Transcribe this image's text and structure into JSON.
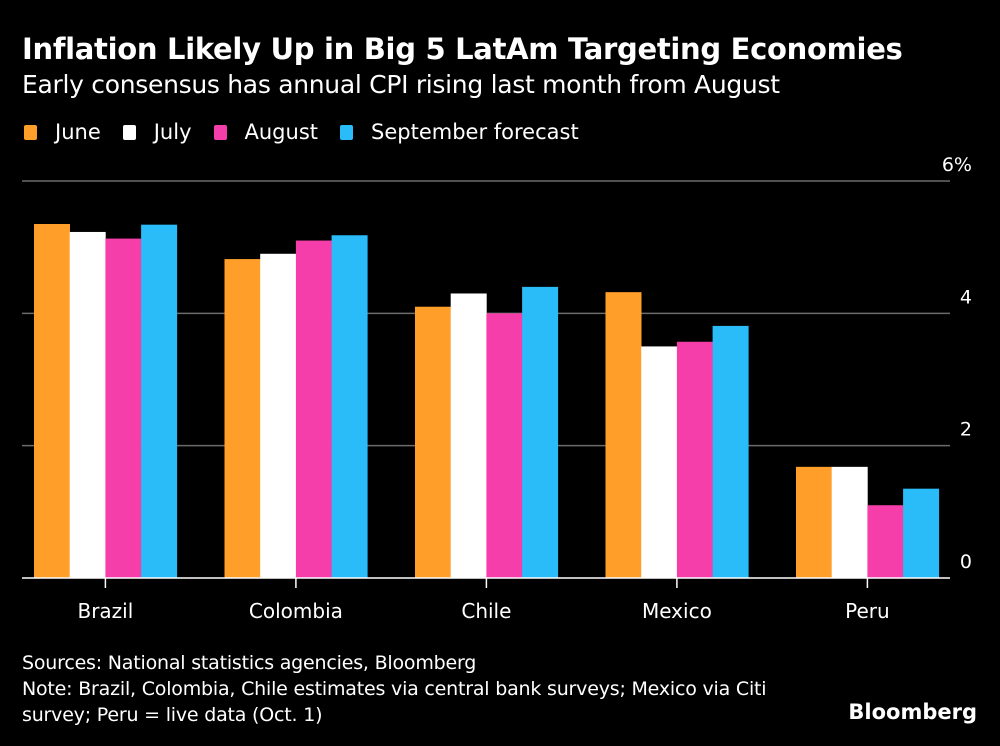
{
  "chart_data": {
    "type": "bar",
    "title": "Inflation Likely Up in Big 5 LatAm Targeting Economies",
    "subtitle": "Early consensus has annual CPI rising last month from August",
    "xlabel": "",
    "ylabel": "",
    "categories": [
      "Brazil",
      "Colombia",
      "Chile",
      "Mexico",
      "Peru"
    ],
    "series": [
      {
        "name": "June",
        "color": "#FF9F2A",
        "values": [
          5.35,
          4.82,
          4.1,
          4.32,
          1.68
        ]
      },
      {
        "name": "July",
        "color": "#FFFFFF",
        "values": [
          5.23,
          4.9,
          4.3,
          3.5,
          1.68
        ]
      },
      {
        "name": "August",
        "color": "#F53EAA",
        "values": [
          5.13,
          5.1,
          4.0,
          3.57,
          1.1
        ]
      },
      {
        "name": "September forecast",
        "color": "#29BCF9",
        "values": [
          5.34,
          5.18,
          4.4,
          3.81,
          1.35
        ]
      }
    ],
    "ylim": [
      0,
      6
    ],
    "yticks": [
      0,
      2,
      4,
      6
    ],
    "ytick_labels": [
      "0",
      "2",
      "4",
      "6%"
    ],
    "y_axis_position": "right",
    "grid": true,
    "legend_position": "top-left"
  },
  "footer": {
    "sources": "Sources: National statistics agencies, Bloomberg",
    "note_line1": "Note: Brazil, Colombia, Chile estimates via central bank surveys; Mexico via Citi",
    "note_line2": "survey; Peru = live data (Oct. 1)",
    "brand": "Bloomberg"
  },
  "colors": {
    "background": "#000000",
    "gridline": "#6b6b6b",
    "axis": "#ffffff"
  }
}
